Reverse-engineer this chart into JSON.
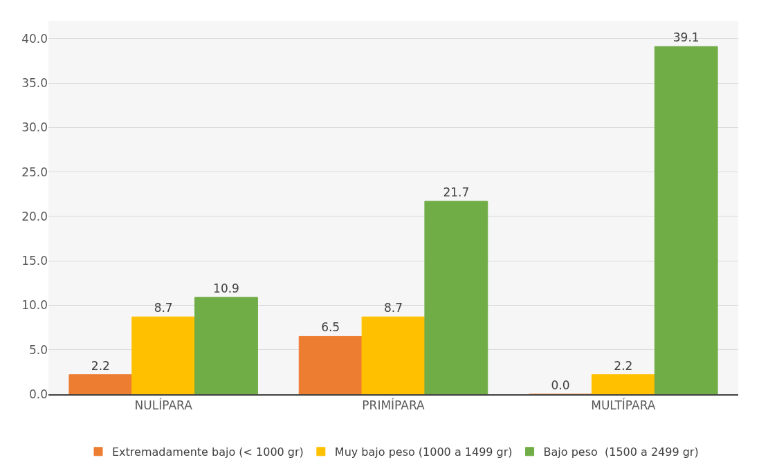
{
  "chart_data": {
    "type": "bar",
    "categories": [
      "NULÍPARA",
      "PRIMÍPARA",
      "MULTÍPARA"
    ],
    "series": [
      {
        "name": "Extremadamente bajo (< 1000 gr)",
        "color": "#ed7d31",
        "values": [
          2.2,
          6.5,
          0.0
        ],
        "value_labels": [
          "2.2",
          "6.5",
          "0.0"
        ]
      },
      {
        "name": "Muy bajo peso (1000 a 1499 gr)",
        "color": "#ffc000",
        "values": [
          8.7,
          8.7,
          2.2
        ],
        "value_labels": [
          "8.7",
          "8.7",
          "2.2"
        ]
      },
      {
        "name": "Bajo peso  (1500 a 2499 gr)",
        "color": "#70ad47",
        "values": [
          10.9,
          21.7,
          39.1
        ],
        "value_labels": [
          "10.9",
          "21.7",
          "39.1"
        ]
      }
    ],
    "ylim": [
      0,
      42
    ],
    "yticks": [
      {
        "value": 0,
        "label": "0.0"
      },
      {
        "value": 5,
        "label": "5.0"
      },
      {
        "value": 10,
        "label": "10.0"
      },
      {
        "value": 15,
        "label": "15.0"
      },
      {
        "value": 20,
        "label": "20.0"
      },
      {
        "value": 25,
        "label": "25.0"
      },
      {
        "value": 30,
        "label": "30.0"
      },
      {
        "value": 35,
        "label": "35.0"
      },
      {
        "value": 40,
        "label": "40.0"
      }
    ],
    "grid": "y",
    "legend": "bottom"
  }
}
